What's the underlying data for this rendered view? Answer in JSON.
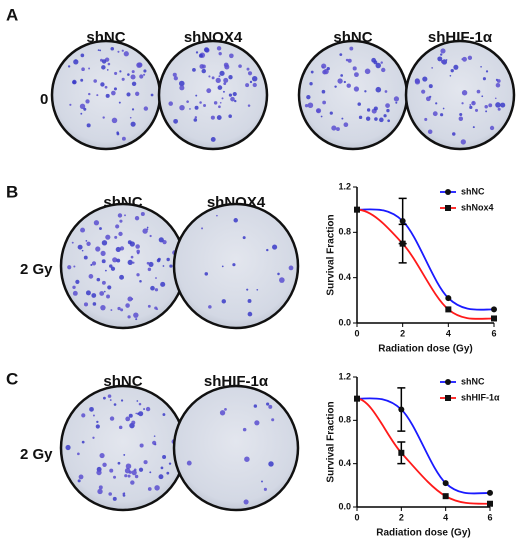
{
  "panels": [
    {
      "label": "A",
      "dose": "0 Gy",
      "dishes": [
        "shNC",
        "shNOX4",
        "shNC",
        "shHIF-1α"
      ]
    },
    {
      "label": "B",
      "dose": "2 Gy",
      "dishes": [
        "shNC",
        "shNOX4"
      ]
    },
    {
      "label": "C",
      "dose": "2 Gy",
      "dishes": [
        "shNC",
        "shHIF-1α"
      ]
    }
  ],
  "chart_data": [
    {
      "type": "line",
      "x_label": "Radiation dose (Gy)",
      "y_label": "Survival Fraction",
      "x": [
        0,
        2,
        4,
        6
      ],
      "xlim": [
        0,
        6
      ],
      "xticks": [
        0,
        2,
        4,
        6
      ],
      "ylim": [
        0,
        1.2
      ],
      "yticks": [
        {
          "value": 0,
          "label": "0.0"
        },
        0.4,
        0.8,
        1.2
      ],
      "series": [
        {
          "name": "shNC",
          "color": "#1a1aff",
          "marker": "circle",
          "values": [
            1,
            0.9,
            0.22,
            0.12
          ],
          "errors": [
            null,
            0.2,
            null,
            null
          ]
        },
        {
          "name": "shNox4",
          "color": "#ff1a1a",
          "marker": "square",
          "values": [
            1,
            0.7,
            0.12,
            0.04
          ],
          "errors": [
            null,
            0.17,
            null,
            null
          ]
        }
      ]
    },
    {
      "type": "line",
      "x_label": "Radiation dose (Gy)",
      "y_label": "Survival Fraction",
      "x": [
        0,
        2,
        4,
        6
      ],
      "xlim": [
        0,
        6
      ],
      "xticks": [
        0,
        2,
        4,
        6
      ],
      "ylim": [
        0,
        1.2
      ],
      "yticks": [
        {
          "value": 0,
          "label": "0.0"
        },
        0.4,
        0.8,
        1.2
      ],
      "series": [
        {
          "name": "shNC",
          "color": "#1a1aff",
          "marker": "circle",
          "values": [
            1,
            0.9,
            0.22,
            0.13
          ],
          "errors": [
            null,
            0.2,
            null,
            null
          ]
        },
        {
          "name": "shHIF-1α",
          "color": "#ff1a1a",
          "marker": "square",
          "values": [
            1,
            0.5,
            0.1,
            0.03
          ],
          "errors": [
            null,
            0.1,
            null,
            null
          ]
        }
      ]
    }
  ]
}
